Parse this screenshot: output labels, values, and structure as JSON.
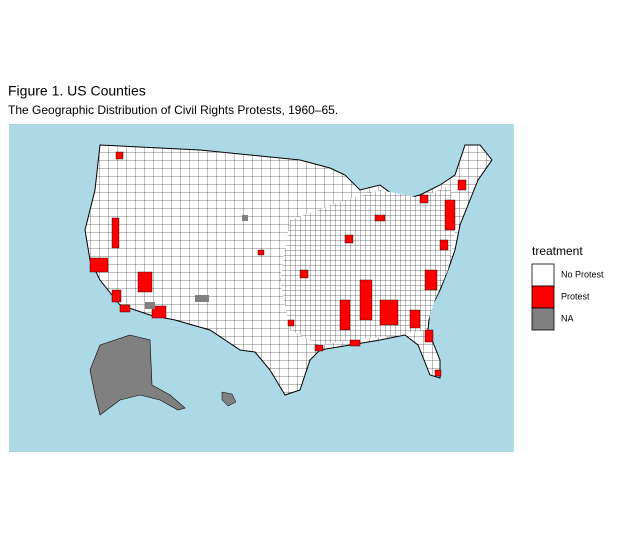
{
  "header": {
    "title": "Figure 1. US Counties",
    "subtitle": "The Geographic Distribution of Civil Rights Protests, 1960–65."
  },
  "legend": {
    "title": "treatment",
    "items": [
      {
        "label": "No Protest",
        "color": "#ffffff"
      },
      {
        "label": "Protest",
        "color": "#ff0000"
      },
      {
        "label": "NA",
        "color": "#808080"
      }
    ]
  }
}
